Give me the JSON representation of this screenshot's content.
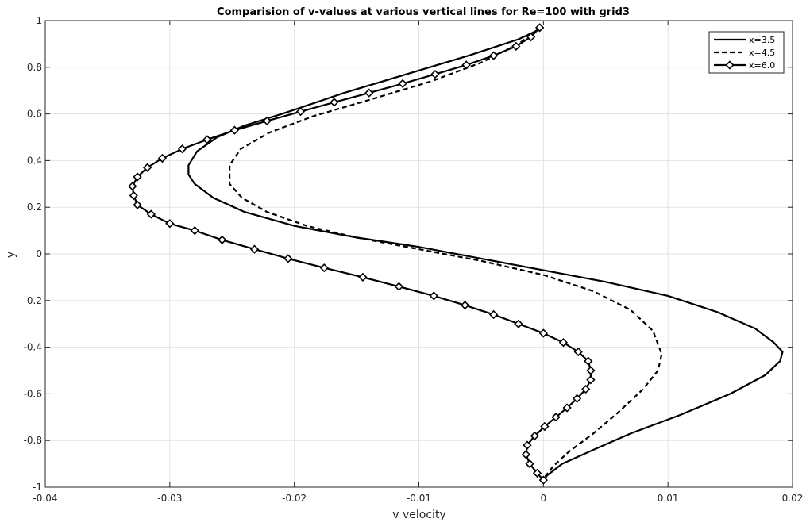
{
  "chart_data": {
    "type": "line",
    "title": "Comparision of v-values at various vertical lines for Re=100 with grid3",
    "xlabel": "v velocity",
    "ylabel": "y",
    "xlim": [
      -0.04,
      0.02
    ],
    "ylim": [
      -1,
      1
    ],
    "xticks": [
      -0.04,
      -0.03,
      -0.02,
      -0.01,
      0,
      0.01,
      0.02
    ],
    "xtick_labels": [
      "-0.04",
      "-0.03",
      "-0.02",
      "-0.01",
      "0",
      "0.01",
      "0.02"
    ],
    "yticks": [
      -1,
      -0.8,
      -0.6,
      -0.4,
      -0.2,
      0,
      0.2,
      0.4,
      0.6,
      0.8,
      1
    ],
    "ytick_labels": [
      "-1",
      "-0.8",
      "-0.6",
      "-0.4",
      "-0.2",
      "0",
      "0.2",
      "0.4",
      "0.6",
      "0.8",
      "1"
    ],
    "grid": true,
    "legend_position": "top-right",
    "series": [
      {
        "name": "x=3.5",
        "style": "solid",
        "color": "#000000",
        "points": [
          [
            0.0,
            0.97
          ],
          [
            -0.002,
            0.92
          ],
          [
            -0.006,
            0.85
          ],
          [
            -0.011,
            0.77
          ],
          [
            -0.016,
            0.69
          ],
          [
            -0.021,
            0.6
          ],
          [
            -0.024,
            0.55
          ],
          [
            -0.0262,
            0.5
          ],
          [
            -0.0278,
            0.44
          ],
          [
            -0.0285,
            0.38
          ],
          [
            -0.0285,
            0.34
          ],
          [
            -0.028,
            0.3
          ],
          [
            -0.0265,
            0.24
          ],
          [
            -0.024,
            0.18
          ],
          [
            -0.02,
            0.12
          ],
          [
            -0.015,
            0.07
          ],
          [
            -0.01,
            0.03
          ],
          [
            -0.005,
            -0.02
          ],
          [
            0.0,
            -0.07
          ],
          [
            0.005,
            -0.12
          ],
          [
            0.01,
            -0.18
          ],
          [
            0.014,
            -0.25
          ],
          [
            0.017,
            -0.32
          ],
          [
            0.0185,
            -0.38
          ],
          [
            0.0192,
            -0.42
          ],
          [
            0.019,
            -0.46
          ],
          [
            0.0178,
            -0.52
          ],
          [
            0.015,
            -0.6
          ],
          [
            0.011,
            -0.69
          ],
          [
            0.007,
            -0.77
          ],
          [
            0.004,
            -0.84
          ],
          [
            0.0015,
            -0.9
          ],
          [
            0.0003,
            -0.95
          ],
          [
            0.0,
            -0.97
          ]
        ]
      },
      {
        "name": "x=4.5",
        "style": "dashed",
        "color": "#000000",
        "points": [
          [
            -0.0005,
            0.96
          ],
          [
            -0.002,
            0.9
          ],
          [
            -0.005,
            0.82
          ],
          [
            -0.009,
            0.74
          ],
          [
            -0.014,
            0.66
          ],
          [
            -0.0185,
            0.59
          ],
          [
            -0.022,
            0.52
          ],
          [
            -0.0243,
            0.45
          ],
          [
            -0.0252,
            0.38
          ],
          [
            -0.0252,
            0.3
          ],
          [
            -0.0242,
            0.24
          ],
          [
            -0.0222,
            0.18
          ],
          [
            -0.019,
            0.12
          ],
          [
            -0.015,
            0.07
          ],
          [
            -0.01,
            0.02
          ],
          [
            -0.005,
            -0.03
          ],
          [
            0.0,
            -0.09
          ],
          [
            0.004,
            -0.16
          ],
          [
            0.007,
            -0.24
          ],
          [
            0.0088,
            -0.33
          ],
          [
            0.0095,
            -0.43
          ],
          [
            0.0092,
            -0.5
          ],
          [
            0.008,
            -0.58
          ],
          [
            0.006,
            -0.68
          ],
          [
            0.004,
            -0.77
          ],
          [
            0.002,
            -0.85
          ],
          [
            0.0008,
            -0.91
          ],
          [
            0.0002,
            -0.95
          ],
          [
            0.0,
            -0.97
          ]
        ]
      },
      {
        "name": "x=6.0",
        "style": "solid-diamond",
        "color": "#000000",
        "points": [
          [
            -0.0003,
            0.97
          ],
          [
            -0.001,
            0.93
          ],
          [
            -0.0022,
            0.89
          ],
          [
            -0.004,
            0.85
          ],
          [
            -0.0062,
            0.81
          ],
          [
            -0.0087,
            0.77
          ],
          [
            -0.0113,
            0.73
          ],
          [
            -0.014,
            0.69
          ],
          [
            -0.0168,
            0.65
          ],
          [
            -0.0195,
            0.61
          ],
          [
            -0.0222,
            0.57
          ],
          [
            -0.0248,
            0.53
          ],
          [
            -0.027,
            0.49
          ],
          [
            -0.029,
            0.45
          ],
          [
            -0.0306,
            0.41
          ],
          [
            -0.0318,
            0.37
          ],
          [
            -0.0326,
            0.33
          ],
          [
            -0.033,
            0.29
          ],
          [
            -0.0329,
            0.25
          ],
          [
            -0.0326,
            0.21
          ],
          [
            -0.0315,
            0.17
          ],
          [
            -0.03,
            0.13
          ],
          [
            -0.028,
            0.1
          ],
          [
            -0.0258,
            0.06
          ],
          [
            -0.0232,
            0.02
          ],
          [
            -0.0205,
            -0.02
          ],
          [
            -0.0176,
            -0.06
          ],
          [
            -0.0145,
            -0.1
          ],
          [
            -0.0116,
            -0.14
          ],
          [
            -0.0088,
            -0.18
          ],
          [
            -0.0063,
            -0.22
          ],
          [
            -0.004,
            -0.26
          ],
          [
            -0.002,
            -0.3
          ],
          [
            0.0,
            -0.34
          ],
          [
            0.0016,
            -0.38
          ],
          [
            0.0028,
            -0.42
          ],
          [
            0.0036,
            -0.46
          ],
          [
            0.0038,
            -0.5
          ],
          [
            0.0038,
            -0.54
          ],
          [
            0.0034,
            -0.58
          ],
          [
            0.0027,
            -0.62
          ],
          [
            0.0019,
            -0.66
          ],
          [
            0.001,
            -0.7
          ],
          [
            0.0001,
            -0.74
          ],
          [
            -0.0007,
            -0.78
          ],
          [
            -0.0013,
            -0.82
          ],
          [
            -0.0014,
            -0.86
          ],
          [
            -0.0011,
            -0.9
          ],
          [
            -0.0005,
            -0.94
          ],
          [
            0.0,
            -0.97
          ]
        ]
      }
    ]
  }
}
